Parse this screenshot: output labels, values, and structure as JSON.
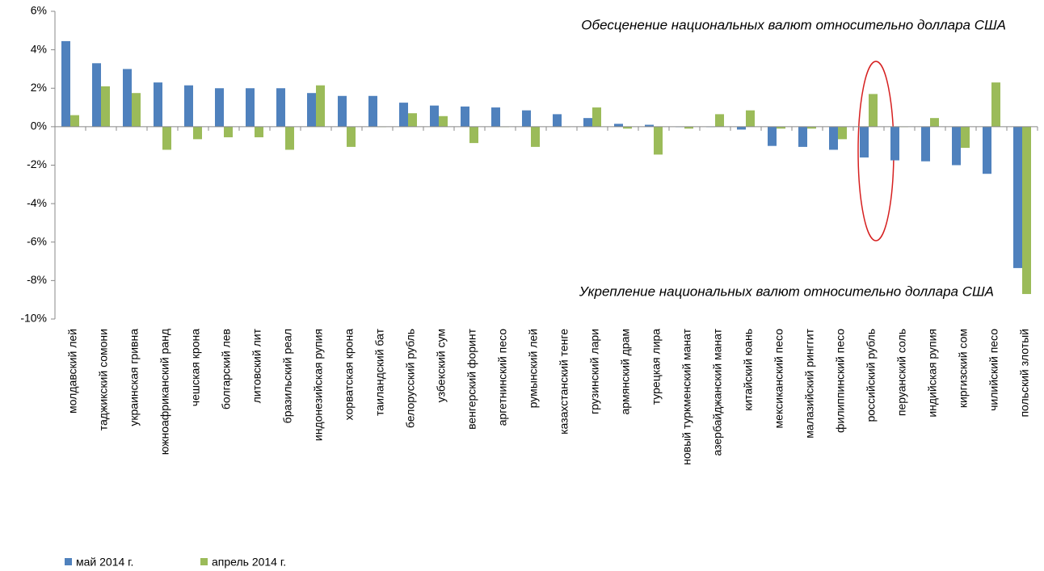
{
  "chart_data": {
    "type": "bar",
    "annotations": [
      "Обесценение национальных валют относительно доллара США",
      "Укрепление национальных валют относительно доллара США"
    ],
    "categories": [
      "молдавский лей",
      "таджикский сомони",
      "украинская гривна",
      "южноафриканский ранд",
      "чешская крона",
      "болгарский лев",
      "литовский лит",
      "бразильский реал",
      "индонезийская рупия",
      "хорватская крона",
      "таиландский бат",
      "белорусский рубль",
      "узбекский сум",
      "венгерский  форинт",
      "аргетнинский песо",
      "румынский лей",
      "казахстанский тенге",
      "грузинский лари",
      "армянский драм",
      "турецкая лира",
      "новый туркменский манат",
      "азербайджанский манат",
      "китайский юань",
      "мексиканский песо",
      "малазийский ринггит",
      "филиппинский песо",
      "российский рубль",
      "перуанский соль",
      "индийская рупия",
      "киргизский сом",
      "чилийский песо",
      "польский злотый"
    ],
    "series": [
      {
        "name": "май 2014 г.",
        "color": "#4f81bd",
        "values": [
          4.45,
          3.3,
          3.0,
          2.3,
          2.15,
          2.0,
          2.0,
          2.0,
          1.75,
          1.6,
          1.6,
          1.25,
          1.1,
          1.05,
          1.0,
          0.85,
          0.65,
          0.45,
          0.15,
          0.1,
          0,
          0,
          -0.15,
          -1.0,
          -1.05,
          -1.2,
          -1.6,
          -1.75,
          -1.8,
          -2.0,
          -2.45,
          -7.35
        ]
      },
      {
        "name": "апрель 2014 г.",
        "color": "#9bbb59",
        "values": [
          0.6,
          2.1,
          1.75,
          -1.2,
          -0.65,
          -0.55,
          -0.55,
          -1.2,
          2.15,
          -1.05,
          0,
          0.7,
          0.55,
          -0.85,
          0,
          -1.05,
          0,
          1.0,
          -0.1,
          -1.45,
          -0.1,
          0.65,
          0.85,
          -0.1,
          -0.1,
          -0.65,
          1.7,
          0,
          0.45,
          -1.1,
          2.3,
          -8.7
        ]
      }
    ],
    "ylim": [
      -10,
      6
    ],
    "yticks": [
      {
        "value": -10,
        "label": "-10%"
      },
      {
        "value": -8,
        "label": "-8%"
      },
      {
        "value": -6,
        "label": "-6%"
      },
      {
        "value": -4,
        "label": "-4%"
      },
      {
        "value": -2,
        "label": "-2%"
      },
      {
        "value": 0,
        "label": "0%"
      },
      {
        "value": 2,
        "label": "2%"
      },
      {
        "value": 4,
        "label": "4%"
      },
      {
        "value": 6,
        "label": "6%"
      }
    ],
    "legend": "bottom-left"
  }
}
